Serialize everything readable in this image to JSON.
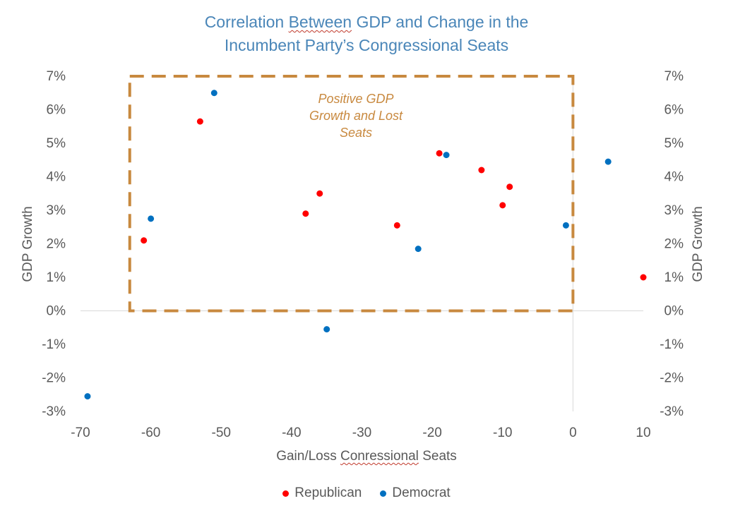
{
  "chart_data": {
    "type": "scatter",
    "title_line1_pre": "Correlation ",
    "title_line1_word": "Between",
    "title_line1_post": " GDP and Change in the",
    "title_line2": "Incumbent Party’s Congressional Seats",
    "xlabel_pre": "Gain/Loss ",
    "xlabel_word": "Conressional",
    "xlabel_post": " Seats",
    "ylabel_left": "GDP Growth",
    "ylabel_right": "GDP Growth",
    "xlim": [
      -70,
      10
    ],
    "ylim": [
      -3,
      7
    ],
    "x_ticks": [
      -70,
      -60,
      -50,
      -40,
      -30,
      -20,
      -10,
      0,
      10
    ],
    "y_ticks": [
      -3,
      -2,
      -1,
      0,
      1,
      2,
      3,
      4,
      5,
      6,
      7
    ],
    "x_tick_labels": [
      "-70",
      "-60",
      "-50",
      "-40",
      "-30",
      "-20",
      "-10",
      "0",
      "10"
    ],
    "y_tick_labels": [
      "-3%",
      "-2%",
      "-1%",
      "0%",
      "1%",
      "2%",
      "3%",
      "4%",
      "5%",
      "6%",
      "7%"
    ],
    "grid": false,
    "legend_position": "bottom",
    "series": [
      {
        "name": "Republican",
        "color": "#ff0000",
        "points": [
          {
            "x": -61,
            "y": 2.1
          },
          {
            "x": -53,
            "y": 5.65
          },
          {
            "x": -38,
            "y": 2.9
          },
          {
            "x": -36,
            "y": 3.5
          },
          {
            "x": -25,
            "y": 2.55
          },
          {
            "x": -19,
            "y": 4.7
          },
          {
            "x": -13,
            "y": 4.2
          },
          {
            "x": -10,
            "y": 3.15
          },
          {
            "x": -9,
            "y": 3.7
          },
          {
            "x": 10,
            "y": 1.0
          }
        ]
      },
      {
        "name": "Democrat",
        "color": "#0070c0",
        "points": [
          {
            "x": -69,
            "y": -2.55
          },
          {
            "x": -60,
            "y": 2.75
          },
          {
            "x": -51,
            "y": 6.5
          },
          {
            "x": -35,
            "y": -0.55
          },
          {
            "x": -22,
            "y": 1.85
          },
          {
            "x": -18,
            "y": 4.65
          },
          {
            "x": -1,
            "y": 2.55
          },
          {
            "x": 5,
            "y": 4.45
          }
        ]
      }
    ],
    "annotation": {
      "lines": [
        "Positive GDP",
        "Growth and Lost",
        "Seats"
      ],
      "x_range": [
        -63,
        0
      ],
      "y_range": [
        0,
        7
      ],
      "color": "#c8893f"
    },
    "colors": {
      "title": "#4a86b8",
      "axis_text": "#595959",
      "axis_line": "#d9d9d9"
    }
  }
}
